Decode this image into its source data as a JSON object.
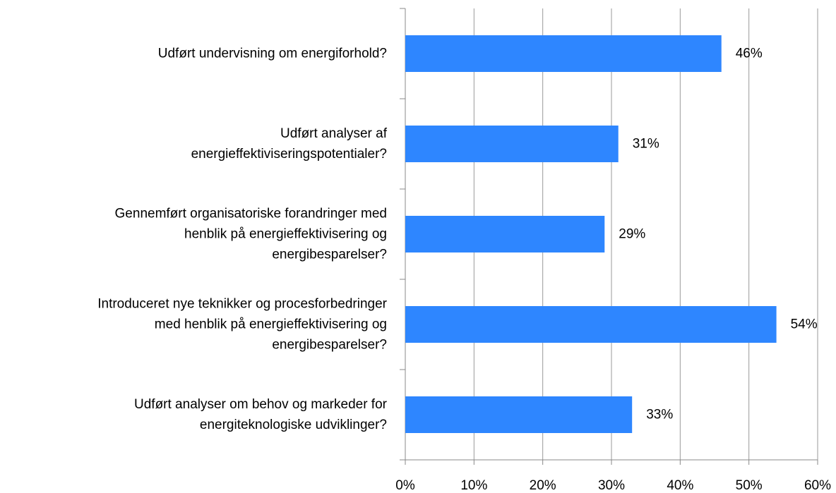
{
  "chart_data": {
    "type": "bar",
    "orientation": "horizontal",
    "categories": [
      "Udført undervisning om energiforhold?",
      "Udført analyser af\nenergieffektiviseringspotentialer?",
      "Gennemført organisatoriske forandringer med\nhenblik på energieffektivisering og\nenergibesparelser?",
      "Introduceret nye teknikker og procesforbedringer\nmed henblik på energieffektivisering og\nenergibesparelser?",
      "Udført analyser om behov og markeder for\nenergiteknologiske udviklinger?"
    ],
    "values": [
      46,
      31,
      29,
      54,
      33
    ],
    "value_labels": [
      "46%",
      "31%",
      "29%",
      "54%",
      "33%"
    ],
    "color": "#2e86ff",
    "xlim": [
      0,
      60
    ],
    "xticks": [
      {
        "value": 0,
        "label": "0%"
      },
      {
        "value": 10,
        "label": "10%"
      },
      {
        "value": 20,
        "label": "20%"
      },
      {
        "value": 30,
        "label": "30%"
      },
      {
        "value": 40,
        "label": "40%"
      },
      {
        "value": 50,
        "label": "50%"
      },
      {
        "value": 60,
        "label": "60%"
      }
    ],
    "grid": true
  }
}
